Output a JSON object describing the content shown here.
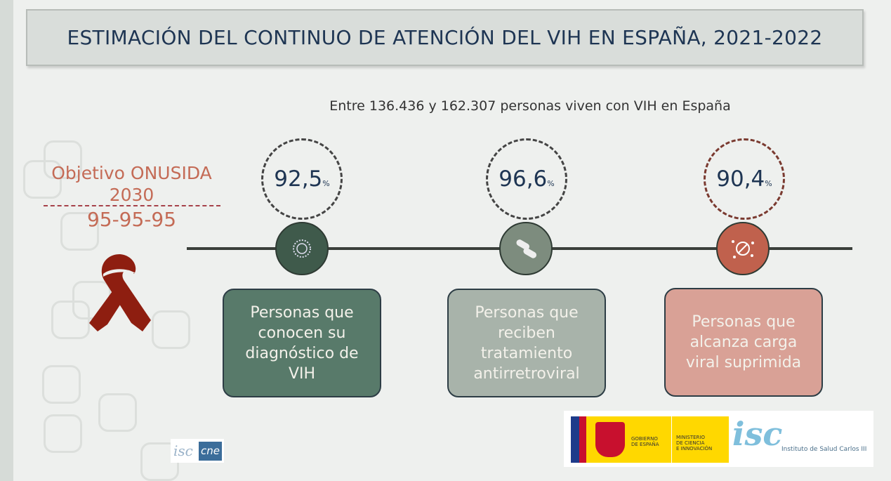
{
  "title": "ESTIMACIÓN DEL CONTINUO DE ATENCIÓN DEL VIH EN ESPAÑA, 2021-2022",
  "subtitle": "Entre 136.436 y 162.307 personas viven con VIH en España",
  "goal": {
    "line1": "Objetivo ONUSIDA",
    "line2": "2030",
    "target": "95-95-95"
  },
  "stages": [
    {
      "value": "92,5",
      "unit": "%",
      "label": "Personas que conocen su diagnóstico de VIH",
      "icon": "virus-icon",
      "color": "#587a6a"
    },
    {
      "value": "96,6",
      "unit": "%",
      "label": "Personas que reciben tratamiento antirretroviral",
      "icon": "pills-icon",
      "color": "#a8b3aa"
    },
    {
      "value": "90,4",
      "unit": "%",
      "label": "Personas que alcanza carga viral suprimida",
      "icon": "suppressed-virus-icon",
      "color": "#d9a196"
    }
  ],
  "logos": {
    "gov1": "GOBIERNO",
    "gov2": "DE ESPAÑA",
    "min1": "MINISTERIO",
    "min2": "DE CIENCIA",
    "min3": "E INNOVACIÓN",
    "isciii": "Instituto de Salud Carlos III",
    "isc": "isc",
    "cne": "cne"
  }
}
